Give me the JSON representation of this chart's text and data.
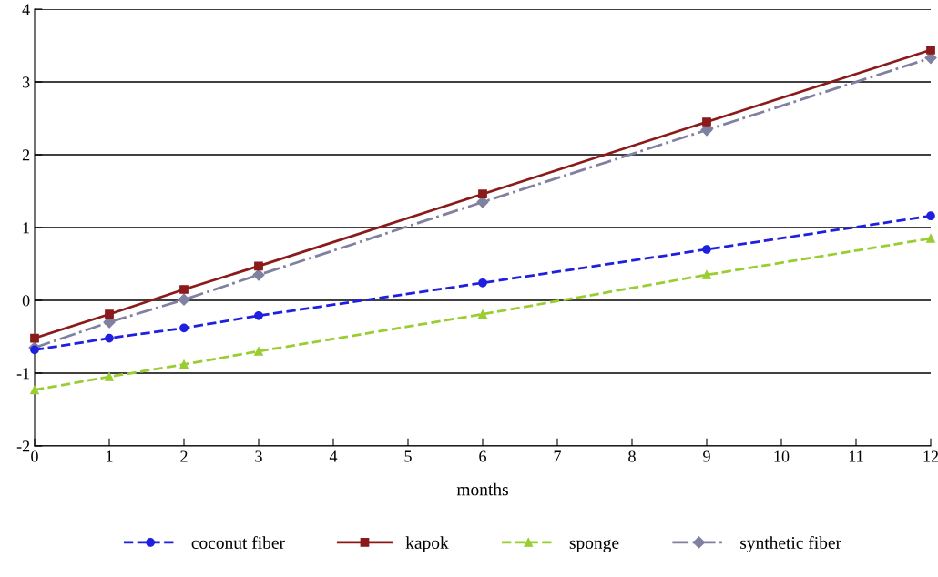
{
  "chart_data": {
    "type": "line",
    "xlabel": "months",
    "x": [
      0,
      1,
      2,
      3,
      6,
      9,
      12
    ],
    "xlim": [
      0,
      12
    ],
    "xticks": [
      0,
      1,
      2,
      3,
      4,
      5,
      6,
      7,
      8,
      9,
      10,
      11,
      12
    ],
    "ylim": [
      -2,
      4
    ],
    "yticks": [
      -2,
      -1,
      0,
      1,
      2,
      3,
      4
    ],
    "grid": "y",
    "legend": "bottom",
    "series": [
      {
        "name": "coconut fiber",
        "color": "#1f1fe0",
        "marker": "circle",
        "line_style": "dashed",
        "values": [
          -0.68,
          -0.52,
          -0.38,
          -0.21,
          0.24,
          0.7,
          1.16
        ]
      },
      {
        "name": "kapok",
        "color": "#8b1a1a",
        "marker": "square",
        "line_style": "solid",
        "values": [
          -0.52,
          -0.19,
          0.15,
          0.47,
          1.46,
          2.45,
          3.44
        ]
      },
      {
        "name": "sponge",
        "color": "#9acd32",
        "marker": "triangle",
        "line_style": "dashed",
        "values": [
          -1.23,
          -1.05,
          -0.88,
          -0.7,
          -0.19,
          0.35,
          0.85
        ]
      },
      {
        "name": "synthetic fiber",
        "color": "#8080a0",
        "marker": "diamond",
        "line_style": "dashdot",
        "values": [
          -0.65,
          -0.3,
          0.01,
          0.35,
          1.35,
          2.34,
          3.33
        ]
      }
    ]
  }
}
